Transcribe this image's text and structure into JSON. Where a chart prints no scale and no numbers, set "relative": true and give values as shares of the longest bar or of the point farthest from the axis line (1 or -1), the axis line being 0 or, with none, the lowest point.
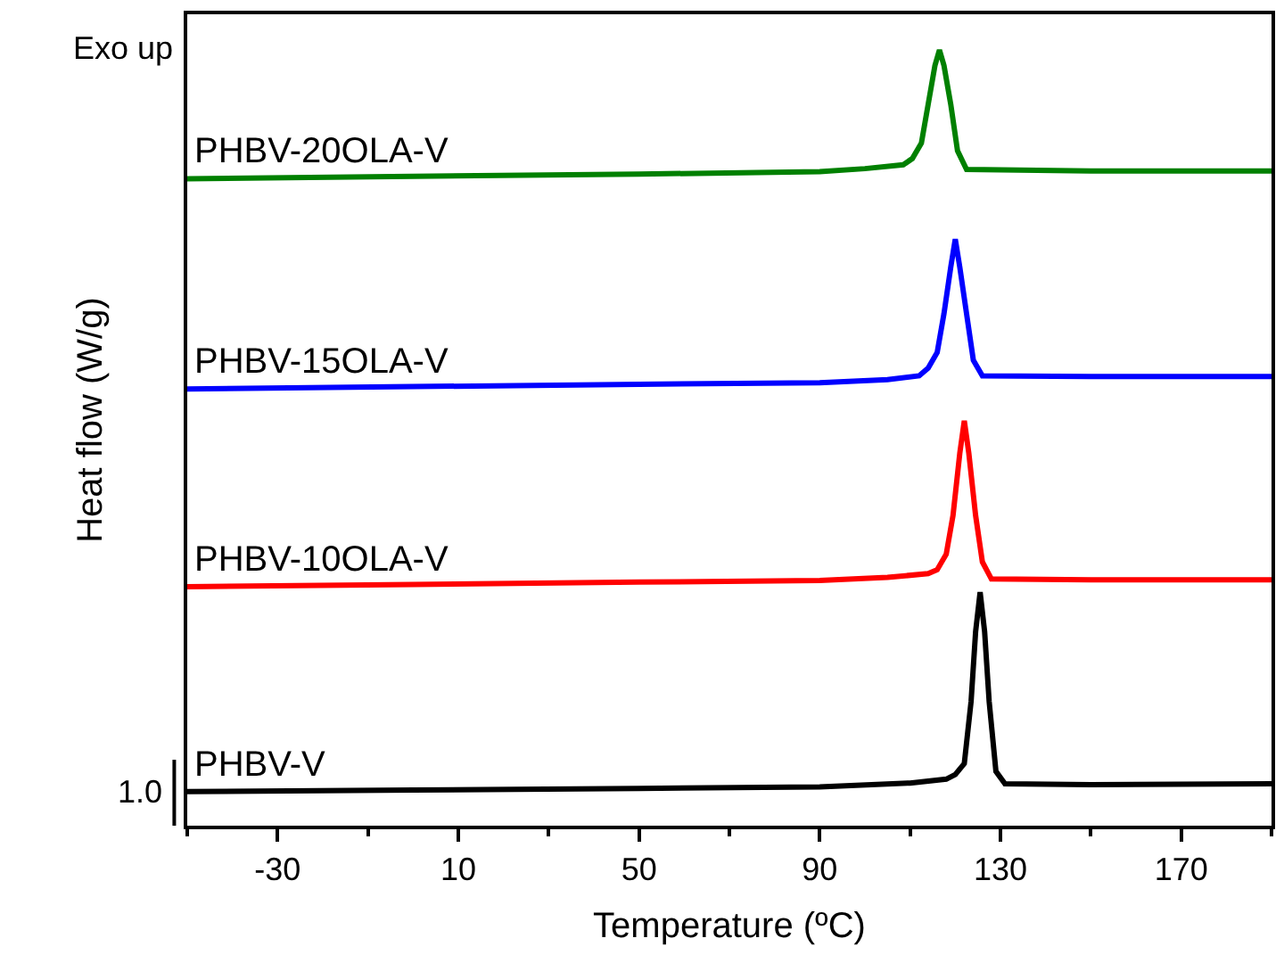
{
  "chart_data": {
    "type": "line",
    "relative": true,
    "xlabel": "Temperature (ºC)",
    "ylabel": "Heat flow (W/g)",
    "xlim": [
      -50,
      190
    ],
    "xticks": [
      -30,
      10,
      50,
      90,
      130,
      170
    ],
    "legend": false,
    "marker": "none",
    "line_style": "solid",
    "annotations": [
      "Exo up",
      "1.0"
    ],
    "series": [
      {
        "name": "PHBV-V",
        "color": "#000000",
        "x": [
          -50,
          0,
          50,
          90,
          110,
          118,
          120,
          122,
          123.5,
          124.5,
          125.5,
          126.5,
          127.5,
          129,
          131,
          150,
          190
        ],
        "values": [
          0.044,
          0.046,
          0.048,
          0.05,
          0.055,
          0.06,
          0.066,
          0.08,
          0.16,
          0.25,
          0.301,
          0.25,
          0.16,
          0.07,
          0.054,
          0.053,
          0.054
        ]
      },
      {
        "name": "PHBV-10OLA-V",
        "color": "#ff0000",
        "x": [
          -50,
          0,
          50,
          90,
          105,
          114,
          116,
          118,
          119.5,
          121,
          122,
          123,
          124.5,
          126,
          128,
          150,
          190
        ],
        "values": [
          0.308,
          0.311,
          0.314,
          0.316,
          0.32,
          0.325,
          0.33,
          0.35,
          0.4,
          0.48,
          0.522,
          0.48,
          0.4,
          0.34,
          0.318,
          0.317,
          0.317
        ]
      },
      {
        "name": "PHBV-15OLA-V",
        "color": "#0000ff",
        "x": [
          -50,
          0,
          50,
          90,
          105,
          112,
          114,
          116,
          117.5,
          119,
          120,
          121,
          122.5,
          124,
          126,
          150,
          190
        ],
        "values": [
          0.563,
          0.566,
          0.569,
          0.571,
          0.575,
          0.58,
          0.59,
          0.61,
          0.66,
          0.72,
          0.756,
          0.72,
          0.66,
          0.6,
          0.58,
          0.579,
          0.579
        ]
      },
      {
        "name": "PHBV-20OLA-V",
        "color": "#008000",
        "x": [
          -50,
          0,
          50,
          90,
          100,
          108.5,
          110.5,
          112.5,
          114,
          115.5,
          116.5,
          117.5,
          119,
          120.5,
          122.5,
          150,
          190
        ],
        "values": [
          0.834,
          0.837,
          0.84,
          0.843,
          0.847,
          0.852,
          0.86,
          0.88,
          0.93,
          0.98,
          1,
          0.98,
          0.93,
          0.87,
          0.846,
          0.844,
          0.844
        ]
      }
    ]
  }
}
